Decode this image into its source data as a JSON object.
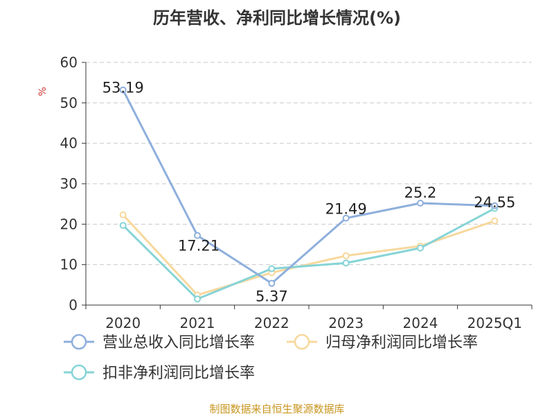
{
  "title": "历年营收、净利同比增长情况(%)",
  "footer": "制图数据来自恒生聚源数据库",
  "colors": {
    "series": [
      "#8eafdc",
      "#f7d89d",
      "#86d4d6"
    ],
    "unit": "#cc3333",
    "grid": "#c9c9c9",
    "axis": "#333333",
    "text": "#333333"
  },
  "chart_data": {
    "type": "line",
    "title": "历年营收、净利同比增长情况(%)",
    "ylabel": "%",
    "xlabel": "",
    "categories": [
      "2020",
      "2021",
      "2022",
      "2023",
      "2024",
      "2025Q1"
    ],
    "ylim": [
      0,
      60
    ],
    "yticks": [
      0,
      10,
      20,
      30,
      40,
      50,
      60
    ],
    "grid": true,
    "legend": "bottom",
    "series": [
      {
        "name": "营业总收入同比增长率",
        "values": [
          53.19,
          17.21,
          5.37,
          21.49,
          25.2,
          24.55
        ],
        "labels": [
          "53.19",
          "17.21",
          "5.37",
          "21.49",
          "25.2",
          "24.55"
        ]
      },
      {
        "name": "归母净利润同比增长率",
        "values": [
          22.3,
          2.5,
          8.0,
          12.2,
          14.6,
          20.8
        ]
      },
      {
        "name": "扣非净利润同比增长率",
        "values": [
          19.7,
          1.5,
          9.0,
          10.4,
          14.1,
          23.9
        ]
      }
    ]
  }
}
